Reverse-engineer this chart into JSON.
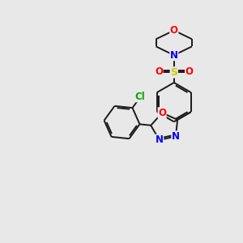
{
  "background_color": "#e8e8e8",
  "bond_color": "#1a1a1a",
  "atom_colors": {
    "O": "#ff0000",
    "N": "#0000ff",
    "S": "#cccc00",
    "Cl": "#00aa00",
    "C": "#1a1a1a"
  }
}
